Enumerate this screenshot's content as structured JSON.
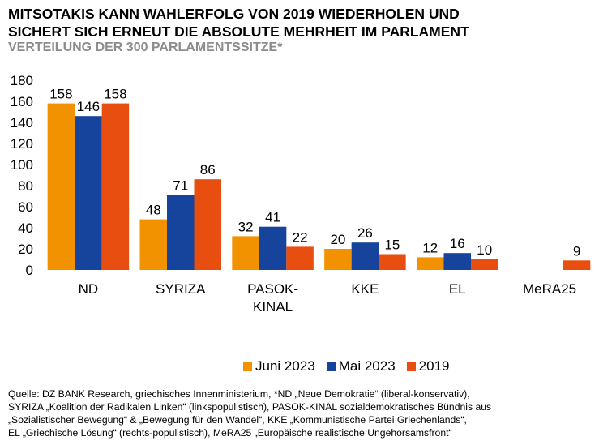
{
  "title_line1": "MITSOTAKIS KANN WAHLERFOLG VON 2019 WIEDERHOLEN UND",
  "title_line2": "SICHERT SICH ERNEUT DIE ABSOLUTE MEHRHEIT IM PARLAMENT",
  "subtitle": "VERTEILUNG DER 300 PARLAMENTSSITZE*",
  "chart_data": {
    "type": "bar",
    "title": "VERTEILUNG DER 300 PARLAMENTSSITZE*",
    "xlabel": "",
    "ylabel": "",
    "ylim": [
      0,
      180
    ],
    "yticks": [
      0,
      20,
      40,
      60,
      80,
      100,
      120,
      140,
      160,
      180
    ],
    "grid": false,
    "legend_position": "bottom",
    "categories": [
      [
        "ND"
      ],
      [
        "SYRIZA"
      ],
      [
        "PASOK-",
        "KINAL"
      ],
      [
        "KKE"
      ],
      [
        "EL"
      ],
      [
        "MeRA25"
      ]
    ],
    "series": [
      {
        "name": "Juni 2023",
        "color": "#f39200",
        "values": [
          158,
          48,
          32,
          20,
          12,
          null
        ]
      },
      {
        "name": "Mai 2023",
        "color": "#16439b",
        "values": [
          146,
          71,
          41,
          26,
          16,
          null
        ]
      },
      {
        "name": "2019",
        "color": "#e84e0f",
        "values": [
          158,
          86,
          22,
          15,
          10,
          9
        ]
      }
    ]
  },
  "source_lines": [
    "Quelle: DZ BANK Research, griechisches Innenministerium, *ND „Neue Demokratie“ (liberal-konservativ),",
    " SYRIZA „Koalition der Radikalen Linken“ (linkspopulistisch), PASOK-KINAL sozialdemokratisches Bündnis aus",
    " „Sozialistischer Bewegung“ & „Bewegung für den Wandel“, KKE „Kommunistische Partei Griechenlands“,",
    " EL „Griechische Lösung“ (rechts-populistisch), MeRA25 „Europäische realistische Ungehorsamsfront“"
  ]
}
